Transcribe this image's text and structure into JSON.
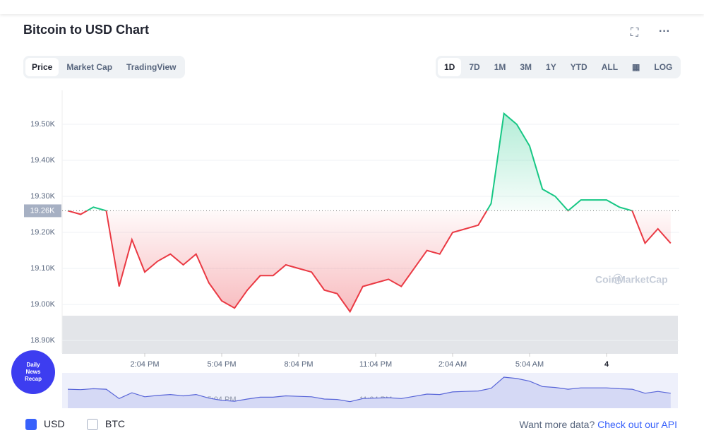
{
  "ui": {
    "title": "Bitcoin to USD Chart",
    "tabs": [
      "Price",
      "Market Cap",
      "TradingView"
    ],
    "ranges": [
      "1D",
      "7D",
      "1M",
      "3M",
      "1Y",
      "YTD",
      "ALL"
    ],
    "log": "LOG",
    "currencies": [
      "USD",
      "BTC"
    ],
    "more": "Want more data?",
    "api": "Check out our API",
    "watermark": "CoinMarketCap",
    "badge": [
      "Daily",
      "News",
      "Recap"
    ]
  },
  "chart_data": {
    "type": "line",
    "categories": [
      null,
      null,
      null,
      null,
      null,
      null,
      "2:04 PM",
      null,
      null,
      null,
      null,
      null,
      "5:04 PM",
      null,
      null,
      null,
      null,
      null,
      "8:04 PM",
      null,
      null,
      null,
      null,
      null,
      "11:04 PM",
      null,
      null,
      null,
      null,
      null,
      "2:04 AM",
      null,
      null,
      null,
      null,
      null,
      "5:04 AM",
      null,
      null,
      null,
      null,
      null,
      "4",
      null,
      null,
      null,
      null,
      null
    ],
    "series": [
      {
        "name": "USD",
        "color": "#ea3943",
        "up_color": "#16c784",
        "values": [
          19.26,
          19.25,
          19.27,
          19.26,
          19.05,
          19.18,
          19.09,
          19.12,
          19.14,
          19.11,
          19.14,
          19.06,
          19.01,
          18.99,
          19.04,
          19.08,
          19.08,
          19.11,
          19.1,
          19.09,
          19.04,
          19.03,
          18.98,
          19.05,
          19.06,
          19.07,
          19.05,
          19.1,
          19.15,
          19.14,
          19.2,
          19.21,
          19.22,
          19.28,
          19.53,
          19.5,
          19.44,
          19.32,
          19.3,
          19.26,
          19.29,
          19.29,
          19.29,
          19.27,
          19.26,
          19.17,
          19.21,
          19.17
        ]
      }
    ],
    "reference": {
      "value": 19.26,
      "label": "19.26K"
    },
    "ylim": [
      18.865,
      19.594
    ],
    "yticks": [
      {
        "value": 18.9,
        "label": "18.90K"
      },
      {
        "value": 19.0,
        "label": "19.00K"
      },
      {
        "value": 19.1,
        "label": "19.10K"
      },
      {
        "value": 19.2,
        "label": "19.20K"
      },
      {
        "value": 19.3,
        "label": "19.30K"
      },
      {
        "value": 19.4,
        "label": "19.40K"
      },
      {
        "value": 19.5,
        "label": "19.50K"
      }
    ],
    "grid": true
  }
}
